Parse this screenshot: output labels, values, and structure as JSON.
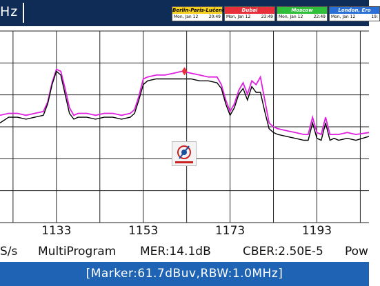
{
  "header": {
    "unit_fragment": "Hz",
    "clocks": [
      {
        "city": "Berlin-Paris-Lučenec",
        "date": "Mon, Jan 12",
        "time": "20:49",
        "color": "#f5d020",
        "text_color": "#000000"
      },
      {
        "city": "Dubai",
        "date": "Mon, Jan 12",
        "time": "23:49",
        "color": "#e8303a",
        "text_color": "#ffffff"
      },
      {
        "city": "Moscow",
        "date": "Mon, Jan 12",
        "time": "22:49",
        "color": "#2fbf3a",
        "text_color": "#ffffff"
      },
      {
        "city": "London, Ero",
        "date": "Mon, Jan 12",
        "time": "19:",
        "color": "#2a6fd6",
        "text_color": "#ffffff"
      }
    ]
  },
  "chart_data": {
    "type": "line",
    "x_ticks": [
      1133,
      1153,
      1173,
      1193
    ],
    "xlim": [
      1120,
      1205
    ],
    "ylim": [
      0,
      100
    ],
    "grid": true,
    "series": [
      {
        "color": "#e020e0",
        "x": [
          1120,
          1122,
          1124,
          1126,
          1128,
          1130,
          1131,
          1132,
          1133,
          1134,
          1135,
          1136,
          1137,
          1138,
          1140,
          1142,
          1144,
          1146,
          1148,
          1150,
          1151,
          1152,
          1153,
          1154,
          1156,
          1158,
          1160,
          1162,
          1164,
          1166,
          1168,
          1170,
          1171,
          1172,
          1173,
          1174,
          1175,
          1176,
          1177,
          1178,
          1179,
          1180,
          1181,
          1182,
          1183,
          1184,
          1186,
          1188,
          1190,
          1191,
          1192,
          1193,
          1194,
          1195,
          1196,
          1197,
          1198,
          1200,
          1202,
          1205
        ],
        "y": [
          56,
          57,
          57,
          56,
          57,
          58,
          63,
          73,
          80,
          79,
          70,
          60,
          56,
          57,
          57,
          56,
          57,
          57,
          56,
          57,
          59,
          66,
          75,
          76,
          77,
          77,
          78,
          79,
          78,
          77,
          76,
          76,
          72,
          64,
          58,
          62,
          69,
          73,
          67,
          74,
          72,
          76,
          64,
          52,
          50,
          49,
          48,
          47,
          46,
          46,
          55,
          47,
          46,
          55,
          46,
          46,
          46,
          47,
          46,
          47
        ]
      },
      {
        "color": "#000000",
        "x": [
          1120,
          1122,
          1124,
          1126,
          1128,
          1130,
          1131,
          1132,
          1133,
          1134,
          1135,
          1136,
          1137,
          1138,
          1140,
          1142,
          1144,
          1146,
          1148,
          1150,
          1151,
          1152,
          1153,
          1154,
          1156,
          1158,
          1160,
          1162,
          1164,
          1166,
          1168,
          1170,
          1171,
          1172,
          1173,
          1174,
          1175,
          1176,
          1177,
          1178,
          1179,
          1180,
          1181,
          1182,
          1183,
          1184,
          1186,
          1188,
          1190,
          1191,
          1192,
          1193,
          1194,
          1195,
          1196,
          1197,
          1198,
          1200,
          1202,
          1205
        ],
        "y": [
          52,
          55,
          55,
          54,
          55,
          56,
          62,
          72,
          79,
          77,
          67,
          57,
          54,
          55,
          55,
          54,
          55,
          55,
          54,
          55,
          57,
          64,
          72,
          74,
          75,
          75,
          75,
          75,
          75,
          74,
          74,
          73,
          70,
          62,
          56,
          60,
          67,
          70,
          64,
          71,
          68,
          68,
          58,
          49,
          47,
          46,
          45,
          44,
          43,
          43,
          52,
          44,
          43,
          52,
          43,
          44,
          43,
          44,
          43,
          45
        ]
      }
    ]
  },
  "marker": {
    "x": 1162.5,
    "y": 79,
    "color": "#e8303a"
  },
  "status": {
    "symbol_rate": "S/s",
    "mode": "MultiProgram",
    "mer": "MER:14.1dB",
    "cber": "CBER:2.50E-5",
    "power": "Pow"
  },
  "marker_info": "[Marker:61.7dBuv,RBW:1.0MHz]"
}
